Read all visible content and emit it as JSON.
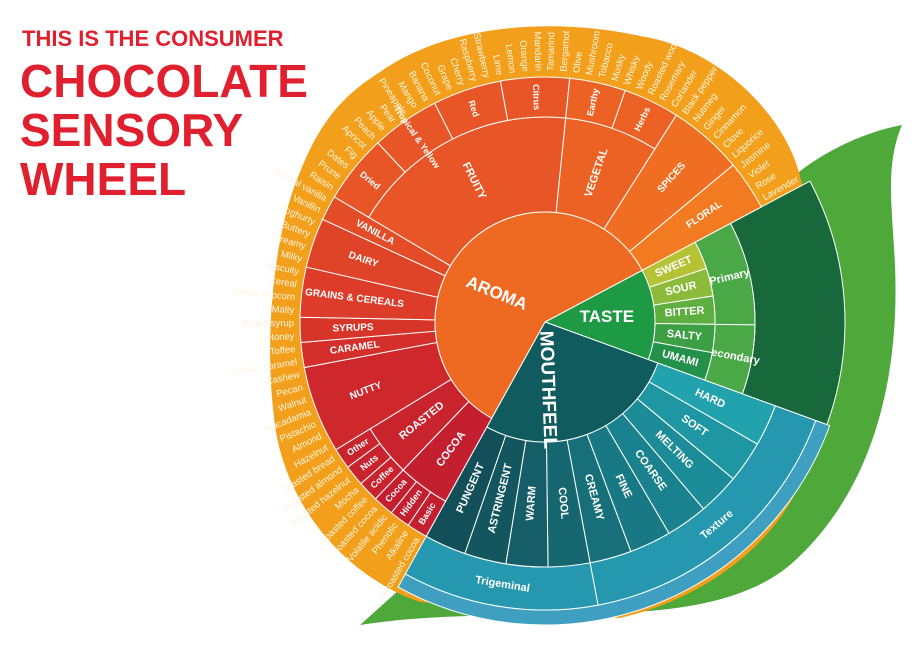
{
  "title": {
    "line1": "THIS IS THE CONSUMER",
    "line2": "CHOCOLATE",
    "line3": "SENSORY",
    "line4": "WHEEL"
  },
  "wheel": {
    "aroma": {
      "label": "AROMA",
      "color": "#ee6a22",
      "groups": [
        {
          "label": "COCOA",
          "color": "#c41f2f",
          "subs": [
            "Basic",
            "Hidden",
            "Cocoa"
          ],
          "words": [
            "Unroasted cocoa",
            "Alkaline",
            "Phenolic",
            "Volatile acidic",
            "Roasted cocoa"
          ]
        },
        {
          "label": "ROASTED",
          "color": "#c9232d",
          "subs": [
            "Coffee",
            "Nuts",
            "Other"
          ],
          "words": [
            "Roasted coffee",
            "Mocha",
            "Roasted hazelnut",
            "Roasted almond",
            "Toasted bread"
          ]
        },
        {
          "label": "NUTTY",
          "color": "#cf282c",
          "subs": [],
          "words": [
            "Hazelnut",
            "Almond",
            "Pistachio",
            "Macadamia",
            "Walnut",
            "Pecan",
            "Cashew"
          ]
        },
        {
          "label": "CARAMEL",
          "color": "#d42f2b",
          "subs": [],
          "words": [
            "Classic caramel",
            "Toffee"
          ]
        },
        {
          "label": "SYRUPS",
          "color": "#d8352a",
          "subs": [],
          "words": [
            "Honey",
            "Maple syrup"
          ]
        },
        {
          "label": "GRAINS & CEREALS",
          "color": "#dc3c29",
          "subs": [],
          "words": [
            "Malty",
            "Sweet popcorn",
            "Cereal",
            "Biscuity"
          ]
        },
        {
          "label": "DAIRY",
          "color": "#e04428",
          "subs": [],
          "words": [
            "Milky",
            "Creamy",
            "Buttery",
            "Yoghurty"
          ]
        },
        {
          "label": "VANILLA",
          "color": "#e34c27",
          "subs": [],
          "words": [
            "Vanillin",
            "Natural vanilla"
          ]
        },
        {
          "label": "FRUITY",
          "color": "#e85526",
          "subs": [
            "Dried",
            "Tropical & Yellow",
            "Red",
            "Citrus"
          ],
          "words": [
            "Raisin",
            "Prune",
            "Dates",
            "Fig",
            "Apricot",
            "Peach",
            "Apple",
            "Pear",
            "Pineapple",
            "Mango",
            "Banana",
            "Coconut",
            "Grape",
            "Cherry",
            "Raspberry",
            "Strawberry",
            "Lime",
            "Lemon",
            "Orange",
            "Mandarin",
            "Tamarind",
            "Bergamot"
          ]
        },
        {
          "label": "VEGETAL",
          "color": "#ec6224",
          "subs": [
            "Earthy",
            "Herbs"
          ],
          "words": [
            "Olive",
            "Mushroom",
            "Tobacco",
            "Musky",
            "Whisky",
            "Woody",
            "Roasted wood",
            "Rosemary",
            "Coriander"
          ]
        },
        {
          "label": "SPICES",
          "color": "#ef6e22",
          "subs": [],
          "words": [
            "Black pepper",
            "Nutmeg",
            "Ginger",
            "Cinnamon",
            "Clove",
            "Liquorice"
          ]
        },
        {
          "label": "FLORAL",
          "color": "#f27a20",
          "subs": [],
          "words": [
            "Jasmine",
            "Violet",
            "Rose",
            "Lavender"
          ]
        }
      ]
    },
    "taste": {
      "label": "TASTE",
      "color": "#1e9a44",
      "group_color": "#4aa847",
      "rim_color": "#17683a",
      "groups": [
        {
          "label": "Primary",
          "items": [
            {
              "label": "SWEET",
              "color": "#b4c233"
            },
            {
              "label": "SOUR",
              "color": "#8cbb3b"
            },
            {
              "label": "BITTER",
              "color": "#5eae40"
            }
          ]
        },
        {
          "label": "Secondary",
          "items": [
            {
              "label": "SALTY",
              "color": "#3c9f44"
            },
            {
              "label": "UMAMI",
              "color": "#24914a"
            }
          ]
        }
      ]
    },
    "mouthfeel": {
      "label": "MOUTHFEEL",
      "color": "#0f5b5d",
      "group_color": "#2597ae",
      "rim_color": "#3e9fc0",
      "groups": [
        {
          "label": "Texture",
          "items": [
            {
              "label": "HARD",
              "color": "#22a2ac"
            },
            {
              "label": "SOFT",
              "color": "#1f97a2"
            },
            {
              "label": "MELTING",
              "color": "#1c8c98"
            },
            {
              "label": "COARSE",
              "color": "#1a828e"
            },
            {
              "label": "FINE",
              "color": "#187884"
            },
            {
              "label": "CREAMY",
              "color": "#176f7a"
            }
          ]
        },
        {
          "label": "Trigeminal",
          "items": [
            {
              "label": "COOL",
              "color": "#166670"
            },
            {
              "label": "WARM",
              "color": "#155e68"
            },
            {
              "label": "ASTRINGENT",
              "color": "#145660"
            },
            {
              "label": "PUNGENT",
              "color": "#134f58"
            }
          ]
        }
      ]
    }
  }
}
